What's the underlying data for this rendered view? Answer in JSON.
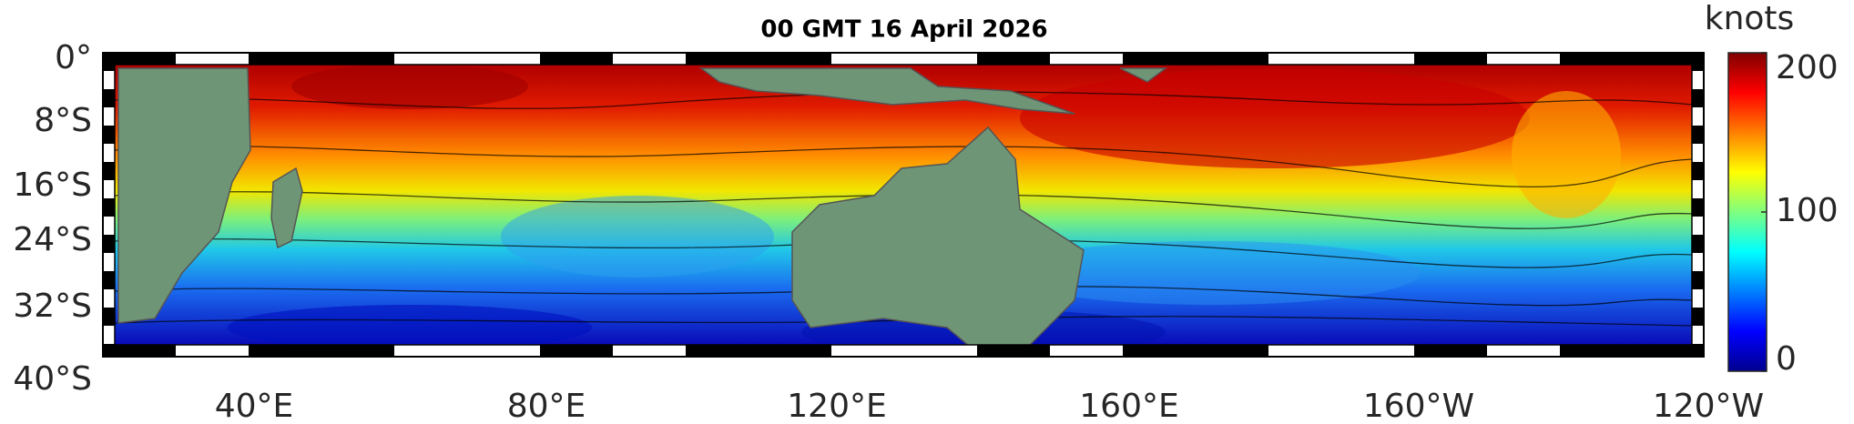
{
  "chart_data": {
    "type": "map",
    "title": "00 GMT 16 April 2026",
    "lat_labels": [
      "0°",
      "8°S",
      "16°S",
      "24°S",
      "32°S",
      "40°S"
    ],
    "lon_labels": [
      "40°E",
      "80°E",
      "120°E",
      "160°E",
      "160°W",
      "120°W"
    ],
    "colorbar": {
      "label": "knots",
      "lim": [
        0,
        200
      ],
      "ticks": [
        0,
        100,
        200
      ]
    }
  }
}
